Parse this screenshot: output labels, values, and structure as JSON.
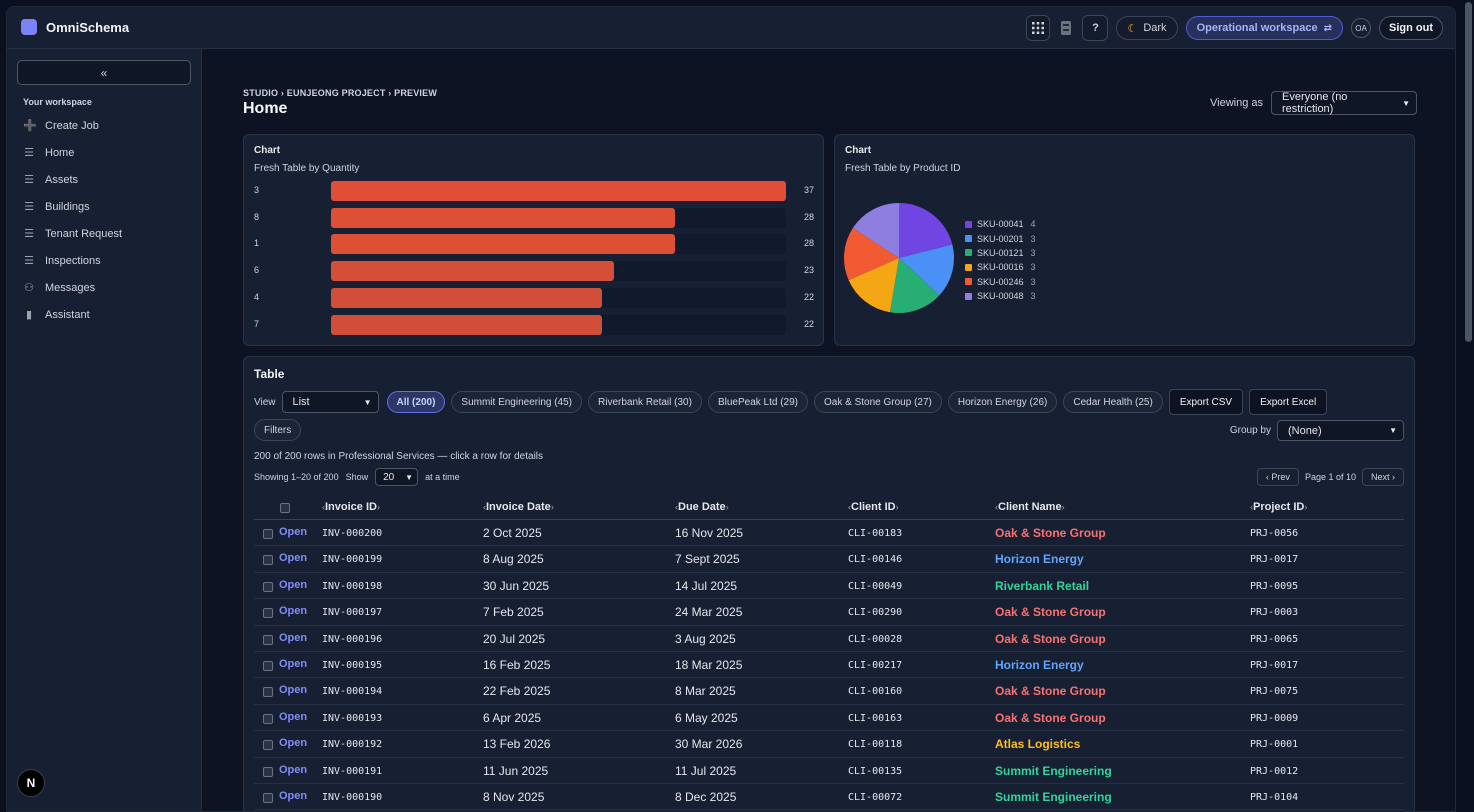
{
  "app": {
    "name": "OmniSchema"
  },
  "topbar": {
    "theme_label": "Dark",
    "workspace_label": "Operational workspace",
    "avatar_initials": "OA",
    "signout_label": "Sign out",
    "help_label": "?"
  },
  "sidebar": {
    "collapse_label": "«",
    "section_label": "Your workspace",
    "items": [
      {
        "label": "Create Job",
        "icon": "plus-icon"
      },
      {
        "label": "Home",
        "icon": "list-icon"
      },
      {
        "label": "Assets",
        "icon": "list-icon"
      },
      {
        "label": "Buildings",
        "icon": "list-icon"
      },
      {
        "label": "Tenant Request",
        "icon": "list-icon"
      },
      {
        "label": "Inspections",
        "icon": "list-icon"
      },
      {
        "label": "Messages",
        "icon": "users-icon"
      },
      {
        "label": "Assistant",
        "icon": "bar-chart-icon"
      }
    ],
    "badge_label": "N"
  },
  "page": {
    "breadcrumb": "STUDIO › EUNJEONG PROJECT › PREVIEW",
    "title": "Home",
    "viewing_as_label": "Viewing as",
    "viewing_as_value": "Everyone (no restriction)"
  },
  "bar_card": {
    "title": "Chart",
    "subtitle": "Fresh Table by Quantity"
  },
  "pie_card": {
    "title": "Chart",
    "subtitle": "Fresh Table by Product ID"
  },
  "chart_data": [
    {
      "type": "bar",
      "orientation": "horizontal",
      "title": "Fresh Table by Quantity",
      "categories": [
        "3",
        "8",
        "1",
        "6",
        "4",
        "7"
      ],
      "values": [
        37,
        28,
        28,
        23,
        22,
        22
      ],
      "xlim": [
        0,
        37
      ],
      "colors": [
        "#e04e35",
        "#de5035",
        "#de5035",
        "#d54f38",
        "#d14f39",
        "#d14f39"
      ]
    },
    {
      "type": "pie",
      "title": "Fresh Table by Product ID",
      "labels": [
        "SKU-00041",
        "SKU-00201",
        "SKU-00121",
        "SKU-00016",
        "SKU-00246",
        "SKU-00048"
      ],
      "values": [
        4,
        3,
        3,
        3,
        3,
        3
      ],
      "colors": [
        "#7045e2",
        "#4a90f5",
        "#27ae74",
        "#f5a614",
        "#f25a33",
        "#8d7ee0"
      ],
      "legend": "right"
    }
  ],
  "table": {
    "title": "Table",
    "view_label": "View",
    "view_value": "List",
    "chips": [
      "All (200)",
      "Summit Engineering (45)",
      "Riverbank Retail (30)",
      "BluePeak Ltd (29)",
      "Oak & Stone Group (27)",
      "Horizon Energy (26)",
      "Cedar Health (25)"
    ],
    "export_csv": "Export CSV",
    "export_excel": "Export Excel",
    "filters_label": "Filters",
    "group_by_label": "Group by",
    "group_by_value": "(None)",
    "row_count_text": "200 of 200 rows in Professional Services — click a row for details",
    "showing_text": "Showing 1–20 of 200",
    "show_label": "Show",
    "page_size": "20",
    "at_a_time": "at a time",
    "prev_label": "‹ Prev",
    "page_info": "Page 1 of 10",
    "next_label": "Next ›",
    "columns": [
      "Invoice ID",
      "Invoice Date",
      "Due Date",
      "Client ID",
      "Client Name",
      "Project ID"
    ],
    "open_label": "Open",
    "client_colors": {
      "Oak & Stone Group": "#f87171",
      "Horizon Energy": "#60a5fa",
      "Riverbank Retail": "#34d399",
      "Atlas Logistics": "#fbbf24",
      "Summit Engineering": "#34d399"
    },
    "rows": [
      {
        "invoice_id": "INV-000200",
        "invoice_date": "2 Oct 2025",
        "due_date": "16 Nov 2025",
        "client_id": "CLI-00183",
        "client_name": "Oak & Stone Group",
        "project_id": "PRJ-0056"
      },
      {
        "invoice_id": "INV-000199",
        "invoice_date": "8 Aug 2025",
        "due_date": "7 Sept 2025",
        "client_id": "CLI-00146",
        "client_name": "Horizon Energy",
        "project_id": "PRJ-0017"
      },
      {
        "invoice_id": "INV-000198",
        "invoice_date": "30 Jun 2025",
        "due_date": "14 Jul 2025",
        "client_id": "CLI-00049",
        "client_name": "Riverbank Retail",
        "project_id": "PRJ-0095"
      },
      {
        "invoice_id": "INV-000197",
        "invoice_date": "7 Feb 2025",
        "due_date": "24 Mar 2025",
        "client_id": "CLI-00290",
        "client_name": "Oak & Stone Group",
        "project_id": "PRJ-0003"
      },
      {
        "invoice_id": "INV-000196",
        "invoice_date": "20 Jul 2025",
        "due_date": "3 Aug 2025",
        "client_id": "CLI-00028",
        "client_name": "Oak & Stone Group",
        "project_id": "PRJ-0065"
      },
      {
        "invoice_id": "INV-000195",
        "invoice_date": "16 Feb 2025",
        "due_date": "18 Mar 2025",
        "client_id": "CLI-00217",
        "client_name": "Horizon Energy",
        "project_id": "PRJ-0017"
      },
      {
        "invoice_id": "INV-000194",
        "invoice_date": "22 Feb 2025",
        "due_date": "8 Mar 2025",
        "client_id": "CLI-00160",
        "client_name": "Oak & Stone Group",
        "project_id": "PRJ-0075"
      },
      {
        "invoice_id": "INV-000193",
        "invoice_date": "6 Apr 2025",
        "due_date": "6 May 2025",
        "client_id": "CLI-00163",
        "client_name": "Oak & Stone Group",
        "project_id": "PRJ-0009"
      },
      {
        "invoice_id": "INV-000192",
        "invoice_date": "13 Feb 2026",
        "due_date": "30 Mar 2026",
        "client_id": "CLI-00118",
        "client_name": "Atlas Logistics",
        "project_id": "PRJ-0001"
      },
      {
        "invoice_id": "INV-000191",
        "invoice_date": "11 Jun 2025",
        "due_date": "11 Jul 2025",
        "client_id": "CLI-00135",
        "client_name": "Summit Engineering",
        "project_id": "PRJ-0012"
      },
      {
        "invoice_id": "INV-000190",
        "invoice_date": "8 Nov 2025",
        "due_date": "8 Dec 2025",
        "client_id": "CLI-00072",
        "client_name": "Summit Engineering",
        "project_id": "PRJ-0104"
      }
    ]
  }
}
